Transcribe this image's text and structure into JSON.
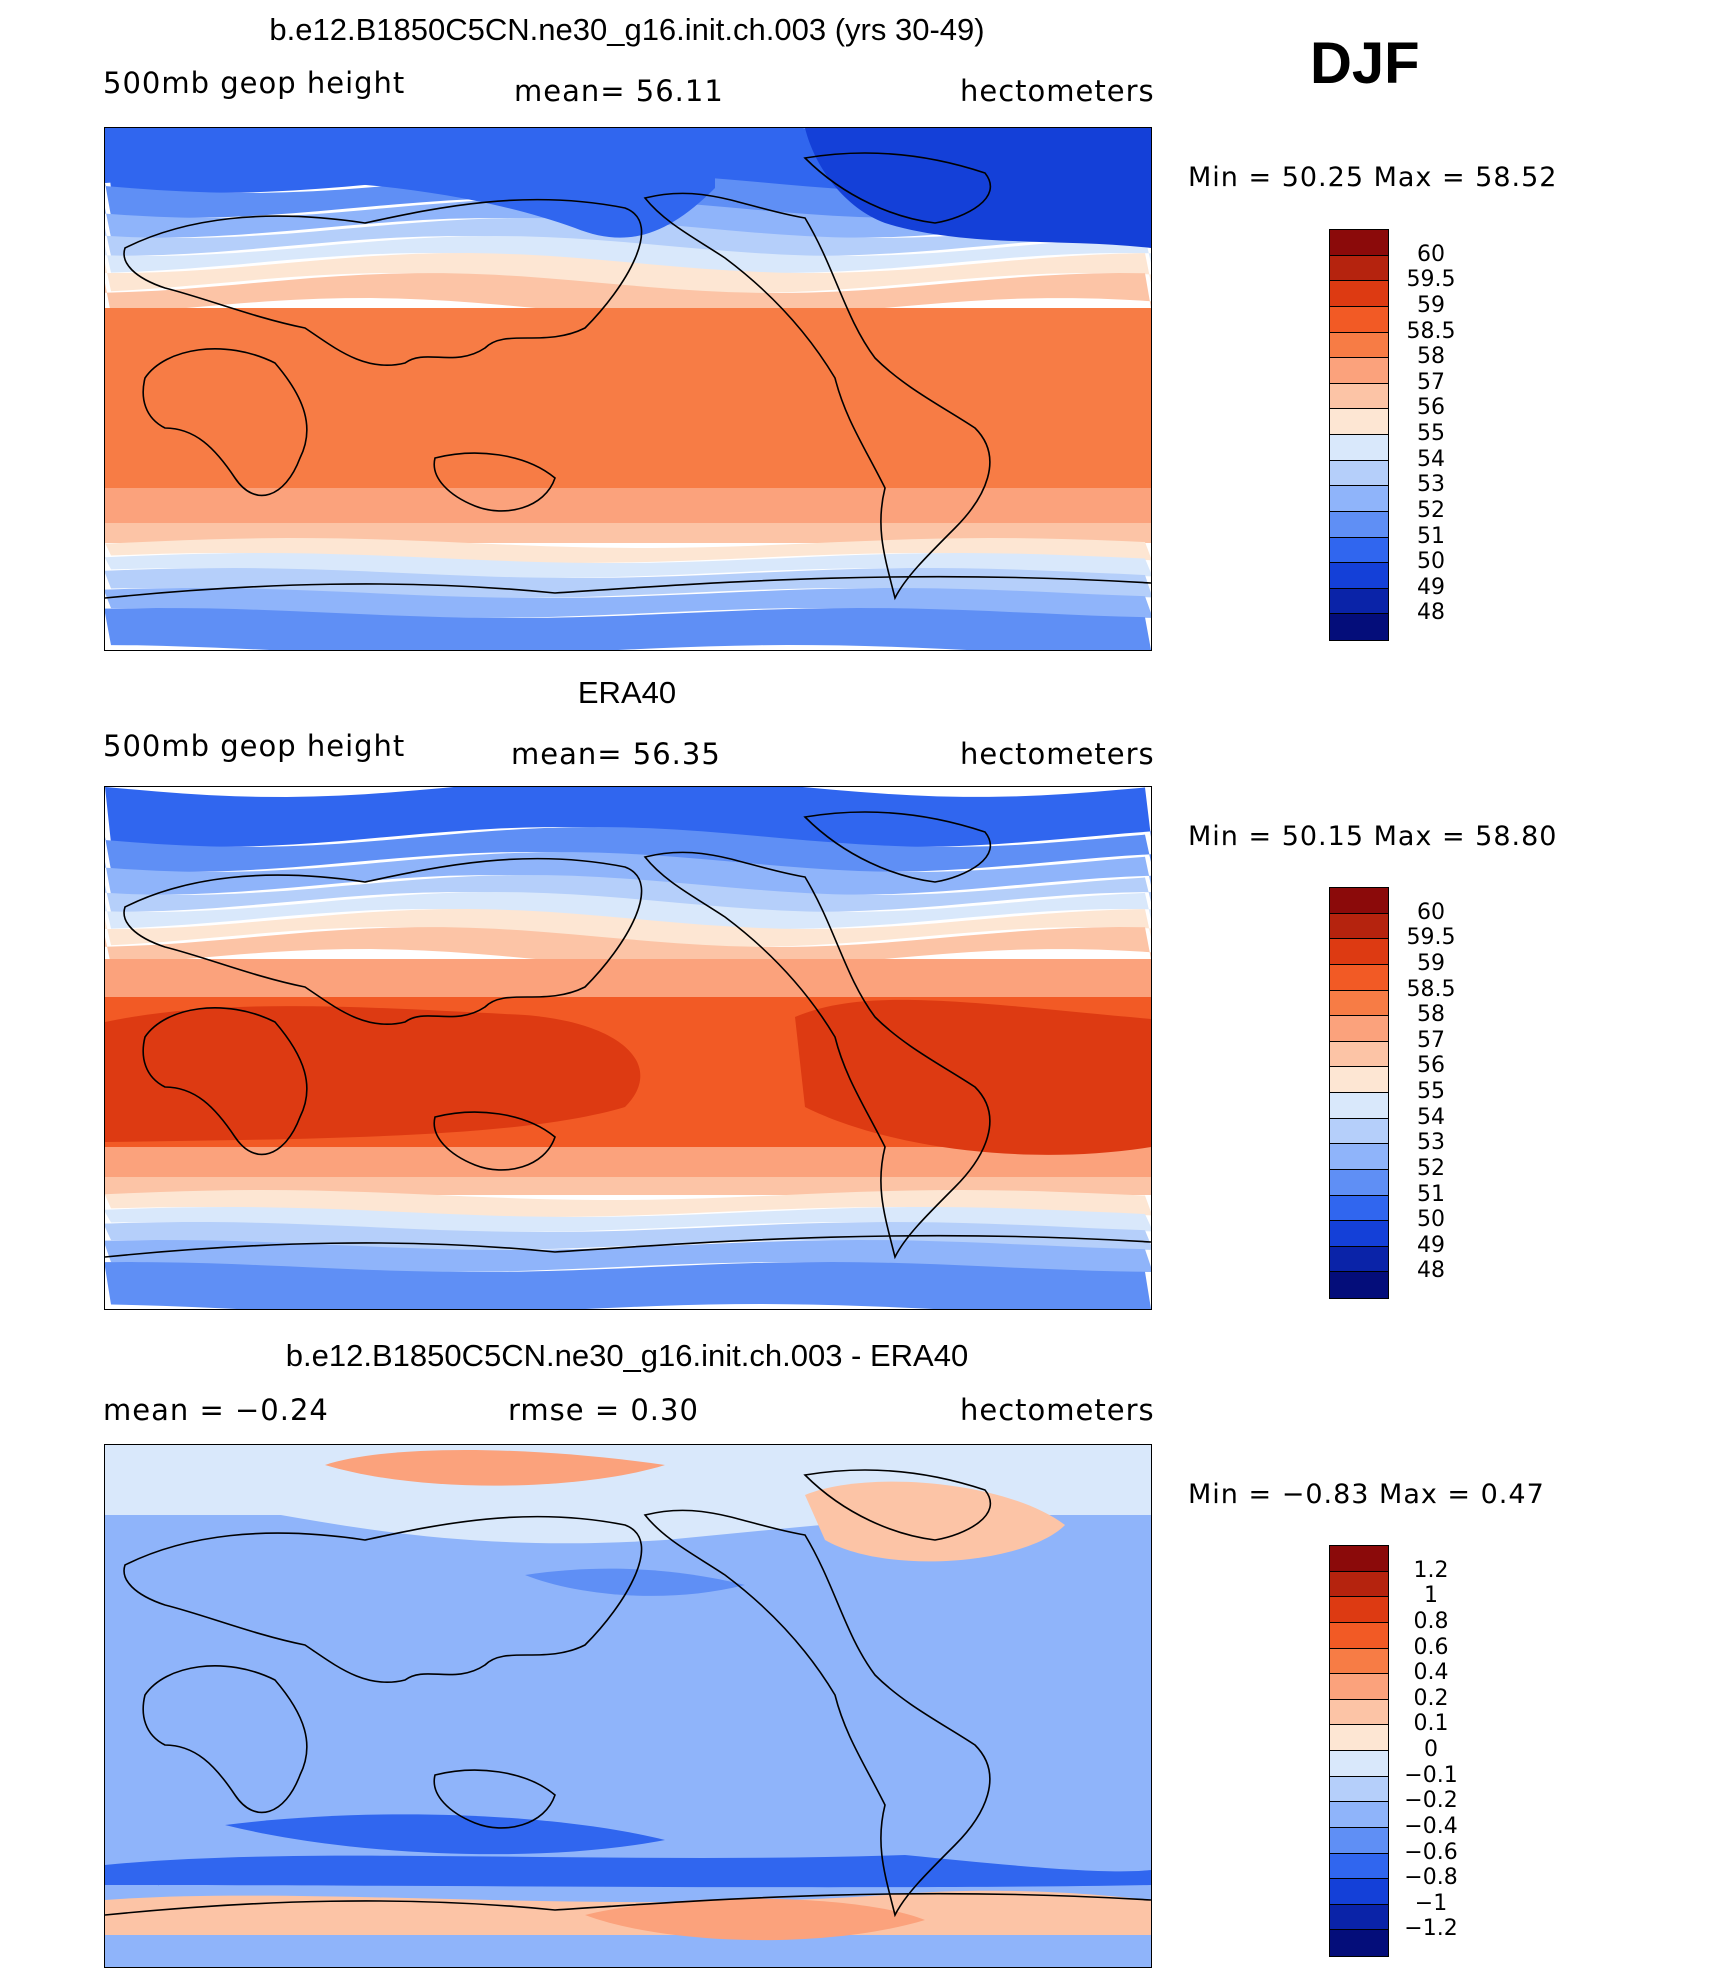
{
  "season": "DJF",
  "panels": [
    {
      "title": "b.e12.B1850C5CN.ne30_g16.init.ch.003 (yrs 30-49)",
      "left_label": "500mb geop height",
      "center_label": "mean=   56.11",
      "right_label": "hectometers",
      "minmax": "Min =   50.25 Max =   58.52",
      "colorbar": {
        "labels": [
          "60",
          "59.5",
          "59",
          "58.5",
          "58",
          "57",
          "56",
          "55",
          "54",
          "53",
          "52",
          "51",
          "50",
          "49",
          "48"
        ],
        "colors": [
          "#8b0a0a",
          "#b5230e",
          "#dd3a12",
          "#f25a25",
          "#f77c45",
          "#fba27c",
          "#fcc4a6",
          "#fde6d3",
          "#d9e8fb",
          "#b5cffa",
          "#8fb4fa",
          "#5f8ff5",
          "#3066ef",
          "#1440d8",
          "#0a23a8",
          "#040d7a"
        ]
      },
      "field": "model"
    },
    {
      "title": "ERA40",
      "left_label": "500mb geop height",
      "center_label": "mean=   56.35",
      "right_label": "hectometers",
      "minmax": "Min =   50.15 Max =   58.80",
      "colorbar": {
        "labels": [
          "60",
          "59.5",
          "59",
          "58.5",
          "58",
          "57",
          "56",
          "55",
          "54",
          "53",
          "52",
          "51",
          "50",
          "49",
          "48"
        ],
        "colors": [
          "#8b0a0a",
          "#b5230e",
          "#dd3a12",
          "#f25a25",
          "#f77c45",
          "#fba27c",
          "#fcc4a6",
          "#fde6d3",
          "#d9e8fb",
          "#b5cffa",
          "#8fb4fa",
          "#5f8ff5",
          "#3066ef",
          "#1440d8",
          "#0a23a8",
          "#040d7a"
        ]
      },
      "field": "obs"
    },
    {
      "title": "b.e12.B1850C5CN.ne30_g16.init.ch.003 - ERA40",
      "left_label": "mean =   −0.24",
      "center_label": "rmse =    0.30",
      "right_label": "hectometers",
      "minmax": "Min =   −0.83 Max =    0.47",
      "colorbar": {
        "labels": [
          "1.2",
          "1",
          "0.8",
          "0.6",
          "0.4",
          "0.2",
          "0.1",
          "0",
          "−0.1",
          "−0.2",
          "−0.4",
          "−0.6",
          "−0.8",
          "−1",
          "−1.2"
        ],
        "colors": [
          "#8b0a0a",
          "#b5230e",
          "#dd3a12",
          "#f25a25",
          "#f77c45",
          "#fba27c",
          "#fcc4a6",
          "#fde6d3",
          "#d9e8fb",
          "#b5cffa",
          "#8fb4fa",
          "#5f8ff5",
          "#3066ef",
          "#1440d8",
          "#0a23a8",
          "#040d7a"
        ]
      },
      "field": "diff"
    }
  ]
}
